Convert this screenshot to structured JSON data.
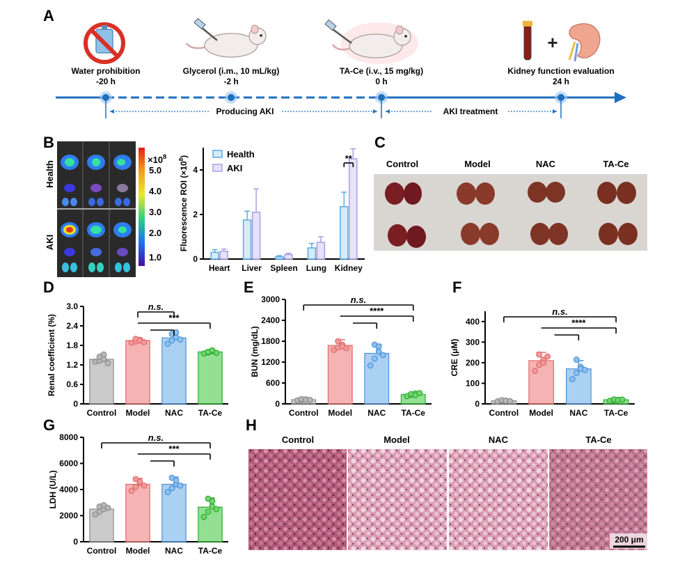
{
  "panel_letters": {
    "a": "A",
    "b": "B",
    "c": "C",
    "d": "D",
    "e": "E",
    "f": "F",
    "g": "G",
    "h": "H"
  },
  "timeline": {
    "events": [
      {
        "label": "Water prohibition",
        "time": "-20 h",
        "icon": "no-water-icon"
      },
      {
        "label": "Glycerol (i.m., 10 mL/kg)",
        "time": "-2 h",
        "icon": "mouse-injection-icon"
      },
      {
        "label": "TA-Ce (i.v., 15 mg/kg)",
        "time": "0 h",
        "icon": "mouse-injection-icon"
      },
      {
        "label": "Kidney function evaluation",
        "time": "24 h",
        "icon": "blood-tube-kidney-icon"
      }
    ],
    "phase_labels": [
      "Producing AKI",
      "AKI treatment"
    ],
    "colors": {
      "axis": "#1f6fbf",
      "dot": "#1f6fbf",
      "glow": "#9cc8f2"
    }
  },
  "imaging": {
    "row_labels": [
      "Health",
      "AKI"
    ],
    "colorbar": {
      "multiplier": "×10",
      "exponent": "8",
      "ticks": [
        "5.0",
        "4.0",
        "3.0",
        "2.0",
        "1.0"
      ]
    }
  },
  "kidney_photo": {
    "labels": [
      "Control",
      "Model",
      "NAC",
      "TA-Ce"
    ],
    "color": "#8b3a2a"
  },
  "histology": {
    "labels": [
      "Control",
      "Model",
      "NAC",
      "TA-Ce"
    ],
    "scale_bar": "200 μm",
    "color": "#c97a92"
  },
  "chart_data": [
    {
      "id": "B",
      "type": "bar",
      "categories": [
        "Heart",
        "Liver",
        "Spleen",
        "Lung",
        "Kidney"
      ],
      "series": [
        {
          "name": "Health",
          "values": [
            0.3,
            1.75,
            0.1,
            0.5,
            2.35
          ],
          "errors": [
            0.12,
            0.4,
            0.05,
            0.2,
            0.65
          ],
          "color": "#5aa9e6",
          "fill": "#d6ebfa"
        },
        {
          "name": "AKI",
          "values": [
            0.35,
            2.1,
            0.2,
            0.75,
            4.5
          ],
          "errors": [
            0.1,
            1.05,
            0.06,
            0.25,
            0.45
          ],
          "color": "#a7a0e0",
          "fill": "#e6e2fb"
        }
      ],
      "ylabel": "Fluorescence ROI (×10",
      "ylabel_exp": "8",
      "ylabel_close": ")",
      "ylim": [
        0,
        5
      ],
      "yticks": [
        0,
        2,
        4
      ],
      "significance": [
        {
          "between": [
            "Kidney:Health",
            "Kidney:AKI"
          ],
          "label": "**"
        }
      ],
      "legend": "top-left"
    },
    {
      "id": "D",
      "type": "bar",
      "categories": [
        "Control",
        "Model",
        "NAC",
        "TA-Ce"
      ],
      "values": [
        1.37,
        1.95,
        2.03,
        1.6
      ],
      "errors": [
        0.1,
        0.08,
        0.16,
        0.05
      ],
      "points": [
        [
          1.3,
          1.33,
          1.38,
          1.45,
          1.52,
          1.25
        ],
        [
          1.88,
          1.92,
          1.97,
          2.0,
          1.95,
          1.9
        ],
        [
          1.85,
          1.95,
          2.05,
          2.15,
          2.2,
          1.98
        ],
        [
          1.55,
          1.58,
          1.62,
          1.6,
          1.65,
          1.57
        ]
      ],
      "colors": [
        "#b8b8b8",
        "#f29a9a",
        "#8fc1ee",
        "#6fd66f"
      ],
      "edge_colors": [
        "#8a8a8a",
        "#e06a6a",
        "#4a90d9",
        "#2eaa2e"
      ],
      "ylabel": "Renal coefficient (%)",
      "ylim": [
        0,
        3.0
      ],
      "yticks": [
        "0",
        "0.6",
        "1.2",
        "1.8",
        "2.4",
        "3.0"
      ],
      "significance": [
        {
          "from": 1,
          "to": 2,
          "label": "n.s.",
          "italic": true
        },
        {
          "from": 1,
          "to": 3,
          "label": "***",
          "italic": false,
          "nested": 2
        }
      ]
    },
    {
      "id": "E",
      "type": "bar",
      "categories": [
        "Control",
        "Model",
        "NAC",
        "TA-Ce"
      ],
      "values": [
        120,
        1680,
        1450,
        270
      ],
      "errors": [
        30,
        160,
        260,
        60
      ],
      "points": [
        [
          100,
          110,
          130,
          140,
          120,
          115
        ],
        [
          1550,
          1620,
          1700,
          1800,
          1650,
          1600
        ],
        [
          1100,
          1300,
          1500,
          1700,
          1650,
          1400
        ],
        [
          220,
          260,
          300,
          280,
          250,
          310
        ]
      ],
      "colors": [
        "#b8b8b8",
        "#f29a9a",
        "#8fc1ee",
        "#6fd66f"
      ],
      "edge_colors": [
        "#8a8a8a",
        "#e06a6a",
        "#4a90d9",
        "#2eaa2e"
      ],
      "ylabel": "BUN (mg/dL)",
      "ylim": [
        0,
        3000
      ],
      "yticks": [
        "0",
        "600",
        "1200",
        "1800",
        "2400",
        "3000"
      ],
      "significance": [
        {
          "from": 0,
          "to": 3,
          "label": "n.s.",
          "italic": true
        },
        {
          "from": 1,
          "to": 3,
          "label": "****",
          "italic": false,
          "nested": 2
        }
      ]
    },
    {
      "id": "F",
      "type": "bar",
      "categories": [
        "Control",
        "Model",
        "NAC",
        "TA-Ce"
      ],
      "values": [
        15,
        210,
        170,
        20
      ],
      "errors": [
        5,
        40,
        40,
        5
      ],
      "points": [
        [
          12,
          14,
          16,
          18,
          15,
          13
        ],
        [
          160,
          190,
          215,
          240,
          200,
          230
        ],
        [
          120,
          150,
          180,
          215,
          170,
          165
        ],
        [
          15,
          18,
          20,
          22,
          19,
          21
        ]
      ],
      "colors": [
        "#b8b8b8",
        "#f29a9a",
        "#8fc1ee",
        "#6fd66f"
      ],
      "edge_colors": [
        "#8a8a8a",
        "#e06a6a",
        "#4a90d9",
        "#2eaa2e"
      ],
      "ylabel": "CRE (μM)",
      "ylim": [
        0,
        450
      ],
      "yticks": [
        "0",
        "100",
        "200",
        "300",
        "400"
      ],
      "significance": [
        {
          "from": 0,
          "to": 3,
          "label": "n.s.",
          "italic": true
        },
        {
          "from": 1,
          "to": 3,
          "label": "****",
          "italic": false,
          "nested": 2
        }
      ]
    },
    {
      "id": "G",
      "type": "bar",
      "categories": [
        "Control",
        "Model",
        "NAC",
        "TA-Ce"
      ],
      "values": [
        2500,
        4400,
        4400,
        2650
      ],
      "errors": [
        300,
        450,
        550,
        700
      ],
      "points": [
        [
          2100,
          2300,
          2500,
          2700,
          2800,
          2600
        ],
        [
          3900,
          4200,
          4500,
          4800,
          4600,
          4300
        ],
        [
          3800,
          4100,
          4400,
          4900,
          4700,
          4300
        ],
        [
          1900,
          2300,
          2700,
          3300,
          3100,
          2500
        ]
      ],
      "colors": [
        "#b8b8b8",
        "#f29a9a",
        "#8fc1ee",
        "#6fd66f"
      ],
      "edge_colors": [
        "#8a8a8a",
        "#e06a6a",
        "#4a90d9",
        "#2eaa2e"
      ],
      "ylabel": "LDH (U/L)",
      "ylim": [
        0,
        8000
      ],
      "yticks": [
        "0",
        "2000",
        "4000",
        "6000",
        "8000"
      ],
      "significance": [
        {
          "from": 0,
          "to": 3,
          "label": "n.s.",
          "italic": true
        },
        {
          "from": 1,
          "to": 3,
          "label": "***",
          "italic": false,
          "nested": 2
        }
      ]
    }
  ]
}
